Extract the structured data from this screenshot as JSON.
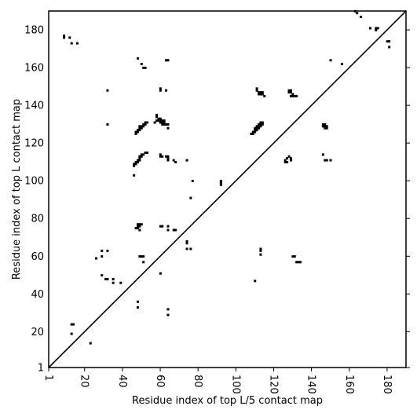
{
  "chart_data": {
    "type": "scatter",
    "xlabel": "Residue index of top L/5 contact map",
    "ylabel": "Residue index of top L contact map",
    "xlim": [
      1,
      190
    ],
    "ylim": [
      1,
      190
    ],
    "x_ticks": [
      1,
      20,
      40,
      60,
      80,
      100,
      120,
      140,
      160,
      180
    ],
    "y_ticks": [
      1,
      20,
      40,
      60,
      80,
      100,
      120,
      140,
      160,
      180
    ],
    "diagonal": true,
    "marker": "square",
    "marker_color": "#000000",
    "points": [
      [
        9,
        177
      ],
      [
        9,
        176
      ],
      [
        12,
        176
      ],
      [
        13,
        173
      ],
      [
        16,
        173
      ],
      [
        48,
        165
      ],
      [
        50,
        162
      ],
      [
        51,
        160
      ],
      [
        52,
        160
      ],
      [
        63,
        164
      ],
      [
        64,
        164
      ],
      [
        60,
        149
      ],
      [
        60,
        148
      ],
      [
        63,
        148
      ],
      [
        32,
        148
      ],
      [
        32,
        130
      ],
      [
        58,
        135
      ],
      [
        58,
        134
      ],
      [
        59,
        133
      ],
      [
        60,
        133
      ],
      [
        58,
        132
      ],
      [
        59,
        132
      ],
      [
        60,
        132
      ],
      [
        61,
        132
      ],
      [
        62,
        132
      ],
      [
        57,
        131
      ],
      [
        60,
        131
      ],
      [
        61,
        131
      ],
      [
        62,
        131
      ],
      [
        61,
        130
      ],
      [
        62,
        130
      ],
      [
        63,
        130
      ],
      [
        64,
        130
      ],
      [
        64,
        128
      ],
      [
        52,
        131
      ],
      [
        53,
        131
      ],
      [
        51,
        130
      ],
      [
        52,
        130
      ],
      [
        49,
        129
      ],
      [
        50,
        129
      ],
      [
        51,
        129
      ],
      [
        49,
        128
      ],
      [
        50,
        128
      ],
      [
        48,
        127
      ],
      [
        49,
        127
      ],
      [
        47,
        126
      ],
      [
        48,
        126
      ],
      [
        47,
        125
      ],
      [
        52,
        115
      ],
      [
        53,
        115
      ],
      [
        51,
        114
      ],
      [
        50,
        114
      ],
      [
        49,
        113
      ],
      [
        50,
        113
      ],
      [
        49,
        112
      ],
      [
        48,
        111
      ],
      [
        49,
        111
      ],
      [
        47,
        110
      ],
      [
        48,
        110
      ],
      [
        46,
        109
      ],
      [
        47,
        109
      ],
      [
        46,
        108
      ],
      [
        46,
        103
      ],
      [
        60,
        114
      ],
      [
        61,
        113
      ],
      [
        60,
        113
      ],
      [
        63,
        113
      ],
      [
        64,
        113
      ],
      [
        64,
        112
      ],
      [
        64,
        111
      ],
      [
        67,
        111
      ],
      [
        68,
        110
      ],
      [
        74,
        111
      ],
      [
        77,
        100
      ],
      [
        76,
        91
      ],
      [
        92,
        100
      ],
      [
        92,
        99
      ],
      [
        92,
        98
      ],
      [
        111,
        149
      ],
      [
        111,
        148
      ],
      [
        112,
        147
      ],
      [
        113,
        147
      ],
      [
        114,
        147
      ],
      [
        112,
        146
      ],
      [
        113,
        146
      ],
      [
        114,
        146
      ],
      [
        115,
        145
      ],
      [
        113,
        131
      ],
      [
        114,
        131
      ],
      [
        112,
        130
      ],
      [
        113,
        130
      ],
      [
        114,
        130
      ],
      [
        111,
        129
      ],
      [
        112,
        129
      ],
      [
        113,
        129
      ],
      [
        110,
        128
      ],
      [
        111,
        128
      ],
      [
        112,
        128
      ],
      [
        110,
        127
      ],
      [
        111,
        127
      ],
      [
        109,
        126
      ],
      [
        110,
        126
      ],
      [
        108,
        125
      ],
      [
        109,
        125
      ],
      [
        128,
        148
      ],
      [
        129,
        148
      ],
      [
        128,
        147
      ],
      [
        129,
        147
      ],
      [
        130,
        146
      ],
      [
        129,
        145
      ],
      [
        130,
        145
      ],
      [
        131,
        145
      ],
      [
        132,
        145
      ],
      [
        128,
        113
      ],
      [
        127,
        112
      ],
      [
        129,
        112
      ],
      [
        126,
        111
      ],
      [
        129,
        111
      ],
      [
        126,
        110
      ],
      [
        127,
        110
      ],
      [
        146,
        130
      ],
      [
        147,
        130
      ],
      [
        146,
        129
      ],
      [
        147,
        129
      ],
      [
        148,
        129
      ],
      [
        147,
        128
      ],
      [
        148,
        128
      ],
      [
        146,
        114
      ],
      [
        147,
        111
      ],
      [
        148,
        111
      ],
      [
        150,
        111
      ],
      [
        150,
        164
      ],
      [
        156,
        162
      ],
      [
        163,
        190
      ],
      [
        164,
        189
      ],
      [
        166,
        187
      ],
      [
        171,
        181
      ],
      [
        174,
        181
      ],
      [
        175,
        181
      ],
      [
        174,
        180
      ],
      [
        180,
        174
      ],
      [
        181,
        174
      ],
      [
        181,
        171
      ],
      [
        48,
        77
      ],
      [
        49,
        77
      ],
      [
        50,
        77
      ],
      [
        48,
        76
      ],
      [
        49,
        76
      ],
      [
        48,
        75
      ],
      [
        47,
        75
      ],
      [
        49,
        74
      ],
      [
        60,
        76
      ],
      [
        61,
        76
      ],
      [
        64,
        76
      ],
      [
        64,
        74
      ],
      [
        67,
        74
      ],
      [
        68,
        74
      ],
      [
        74,
        68
      ],
      [
        74,
        67
      ],
      [
        74,
        64
      ],
      [
        76,
        64
      ],
      [
        49,
        60
      ],
      [
        50,
        60
      ],
      [
        51,
        60
      ],
      [
        51,
        57
      ],
      [
        60,
        51
      ],
      [
        29,
        63
      ],
      [
        32,
        63
      ],
      [
        29,
        60
      ],
      [
        26,
        59
      ],
      [
        29,
        50
      ],
      [
        31,
        48
      ],
      [
        32,
        48
      ],
      [
        35,
        48
      ],
      [
        35,
        46
      ],
      [
        39,
        46
      ],
      [
        48,
        36
      ],
      [
        48,
        33
      ],
      [
        64,
        32
      ],
      [
        64,
        29
      ],
      [
        13,
        24
      ],
      [
        14,
        24
      ],
      [
        13,
        19
      ],
      [
        23,
        14
      ],
      [
        110,
        47
      ],
      [
        113,
        64
      ],
      [
        113,
        63
      ],
      [
        113,
        61
      ],
      [
        130,
        60
      ],
      [
        131,
        60
      ],
      [
        132,
        57
      ],
      [
        133,
        57
      ],
      [
        134,
        57
      ]
    ]
  }
}
